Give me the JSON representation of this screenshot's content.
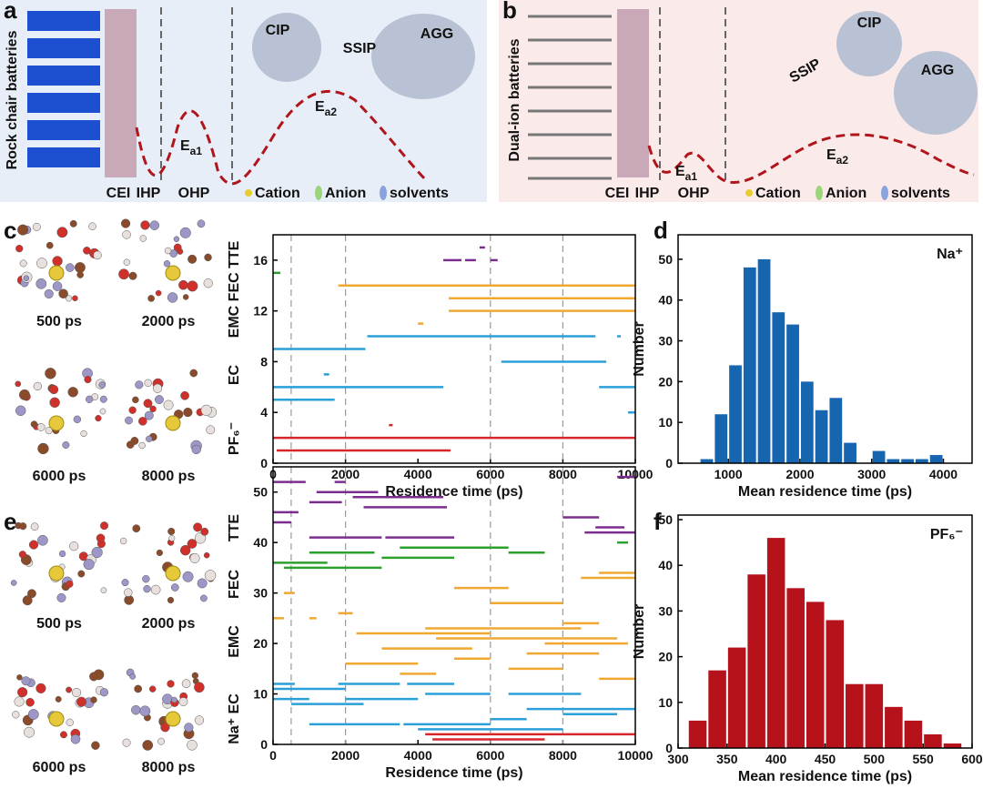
{
  "panel_labels": [
    "a",
    "b",
    "c",
    "d",
    "e",
    "f"
  ],
  "diagram_a": {
    "side_label": "Rock chair batteries",
    "layers": [
      "CEI",
      "IHP",
      "OHP"
    ],
    "clusters": [
      "CIP",
      "SSIP",
      "AGG"
    ],
    "barriers": [
      [
        "E",
        "a1"
      ],
      [
        "E",
        "a2"
      ]
    ],
    "legend": [
      "Cation",
      "Anion",
      "solvents"
    ]
  },
  "diagram_b": {
    "side_label": "Dual-ion batteries",
    "layers": [
      "CEI",
      "IHP",
      "OHP"
    ],
    "clusters": [
      "CIP",
      "SSIP",
      "AGG"
    ],
    "barriers": [
      [
        "E",
        "a1"
      ],
      [
        "E",
        "a2"
      ]
    ],
    "legend": [
      "Cation",
      "Anion",
      "solvents"
    ]
  },
  "snapshots_c": [
    "500 ps",
    "2000 ps",
    "6000 ps",
    "8000 ps"
  ],
  "snapshots_e": [
    "500 ps",
    "2000 ps",
    "6000 ps",
    "8000 ps"
  ],
  "chart_data": [
    {
      "type": "segments",
      "xlabel": "Residence time (ps)",
      "xlim": [
        0,
        10000
      ],
      "ylim": [
        0,
        18
      ],
      "xticks": [
        0,
        2000,
        4000,
        6000,
        8000,
        10000
      ],
      "yticks": [
        0,
        4,
        8,
        12,
        16
      ],
      "vlines": [
        500,
        2000,
        6000,
        8000
      ],
      "group_labels": [
        "PF₆⁻",
        "EC",
        "EMC FEC TTE"
      ],
      "series": [
        {
          "color": "#d7262b",
          "segments": [
            [
              2,
              0,
              10000
            ],
            [
              1,
              100,
              4900
            ],
            [
              3,
              3200,
              3300
            ]
          ]
        },
        {
          "color": "#2a9fd8",
          "segments": [
            [
              9,
              0,
              2550
            ],
            [
              10,
              2600,
              8900
            ],
            [
              10,
              9500,
              9600
            ],
            [
              8,
              6300,
              9200
            ],
            [
              7,
              1400,
              1550
            ],
            [
              6,
              0,
              4700
            ],
            [
              6,
              9000,
              10000
            ],
            [
              5,
              0,
              1700
            ],
            [
              4,
              9800,
              10000
            ]
          ]
        },
        {
          "color": "#f0a830",
          "segments": [
            [
              14,
              1800,
              10000
            ],
            [
              13,
              4850,
              10000
            ],
            [
              12,
              4850,
              10000
            ],
            [
              11,
              4000,
              4150
            ]
          ]
        },
        {
          "color": "#2ca02c",
          "segments": [
            [
              15,
              0,
              200
            ]
          ]
        },
        {
          "color": "#7b2d8e",
          "segments": [
            [
              16,
              4700,
              5200
            ],
            [
              16,
              5300,
              5600
            ],
            [
              16,
              6000,
              6200
            ],
            [
              17,
              5700,
              5850
            ]
          ]
        }
      ]
    },
    {
      "type": "histogram",
      "xlabel": "Mean residence time (ps)",
      "ylabel": "Number",
      "annotation": "Na⁺",
      "color": "#1565b0",
      "xlim": [
        300,
        4400
      ],
      "ylim": [
        0,
        56
      ],
      "xticks": [
        1000,
        2000,
        3000,
        4000
      ],
      "yticks": [
        0,
        10,
        20,
        30,
        40,
        50
      ],
      "bins": [
        600,
        800,
        1000,
        1200,
        1400,
        1600,
        1800,
        2000,
        2200,
        2400,
        2600,
        2800,
        3000,
        3200,
        3400,
        3600,
        3800,
        4000
      ],
      "values": [
        1,
        12,
        24,
        48,
        50,
        37,
        34,
        20,
        13,
        16,
        5,
        0,
        3,
        1,
        1,
        1,
        2
      ]
    },
    {
      "type": "segments",
      "xlabel": "Residence time (ps)",
      "xlim": [
        0,
        10000
      ],
      "ylim": [
        0,
        55
      ],
      "xticks": [
        0,
        2000,
        4000,
        6000,
        8000,
        10000
      ],
      "yticks": [
        0,
        10,
        20,
        30,
        40,
        50
      ],
      "vlines": [
        500,
        2000,
        6000,
        8000
      ],
      "group_labels": [
        "Na⁺ EC",
        "EMC",
        "FEC",
        "TTE"
      ],
      "series": [
        {
          "color": "#d7262b",
          "segments": [
            [
              2,
              4200,
              10000
            ],
            [
              1,
              4400,
              7500
            ]
          ]
        },
        {
          "color": "#2a9fd8",
          "segments": [
            [
              12,
              0,
              600
            ],
            [
              12,
              1800,
              3500
            ],
            [
              12,
              3700,
              5000
            ],
            [
              11,
              0,
              2000
            ],
            [
              10,
              4200,
              6000
            ],
            [
              10,
              6500,
              8500
            ],
            [
              9,
              0,
              1000
            ],
            [
              9,
              2000,
              4000
            ],
            [
              8,
              500,
              2500
            ],
            [
              4,
              1000,
              3500
            ],
            [
              4,
              3600,
              6000
            ],
            [
              3,
              4000,
              8000
            ],
            [
              5,
              6000,
              7000
            ],
            [
              6,
              8000,
              9500
            ],
            [
              7,
              7000,
              10000
            ]
          ]
        },
        {
          "color": "#f0a830",
          "segments": [
            [
              34,
              9000,
              10000
            ],
            [
              33,
              8500,
              10000
            ],
            [
              31,
              5000,
              6500
            ],
            [
              28,
              6000,
              8000
            ],
            [
              25,
              0,
              300
            ],
            [
              25,
              1000,
              1200
            ],
            [
              22,
              2300,
              6000
            ],
            [
              23,
              4200,
              8500
            ],
            [
              21,
              4500,
              9500
            ],
            [
              24,
              8000,
              9000
            ],
            [
              19,
              3000,
              5500
            ],
            [
              20,
              7500,
              9800
            ],
            [
              16,
              2000,
              4000
            ],
            [
              15,
              6500,
              8000
            ],
            [
              14,
              3500,
              4500
            ],
            [
              13,
              9000,
              10000
            ],
            [
              17,
              5000,
              6000
            ],
            [
              18,
              7000,
              9000
            ],
            [
              30,
              300,
              600
            ],
            [
              26,
              1800,
              2200
            ]
          ]
        },
        {
          "color": "#2ca02c",
          "segments": [
            [
              39,
              3500,
              6500
            ],
            [
              38,
              1000,
              2800
            ],
            [
              37,
              3000,
              5000
            ],
            [
              36,
              0,
              1500
            ],
            [
              35,
              300,
              3000
            ],
            [
              40,
              9500,
              9800
            ],
            [
              38,
              6500,
              7500
            ]
          ]
        },
        {
          "color": "#7b2d8e",
          "segments": [
            [
              52,
              0,
              900
            ],
            [
              52,
              1700,
              2000
            ],
            [
              50,
              1200,
              2900
            ],
            [
              49,
              2200,
              4700
            ],
            [
              48,
              1000,
              1900
            ],
            [
              47,
              2500,
              4800
            ],
            [
              46,
              0,
              700
            ],
            [
              45,
              8000,
              9000
            ],
            [
              44,
              0,
              500
            ],
            [
              41,
              1000,
              3000
            ],
            [
              41,
              3100,
              5000
            ],
            [
              42,
              8600,
              10000
            ],
            [
              53,
              9500,
              10000
            ],
            [
              43,
              8900,
              9700
            ]
          ]
        }
      ]
    },
    {
      "type": "histogram",
      "xlabel": "Mean residence time (ps)",
      "ylabel": "Number",
      "annotation": "PF₆⁻",
      "color": "#b5121b",
      "xlim": [
        300,
        600
      ],
      "ylim": [
        0,
        51
      ],
      "xticks": [
        300,
        350,
        400,
        450,
        500,
        550,
        600
      ],
      "yticks": [
        0,
        10,
        20,
        30,
        40,
        50
      ],
      "bins": [
        310,
        330,
        350,
        370,
        390,
        410,
        430,
        450,
        470,
        490,
        510,
        530,
        550,
        570,
        590
      ],
      "values": [
        6,
        17,
        22,
        38,
        46,
        35,
        32,
        28,
        14,
        14,
        9,
        6,
        3,
        1
      ]
    }
  ]
}
